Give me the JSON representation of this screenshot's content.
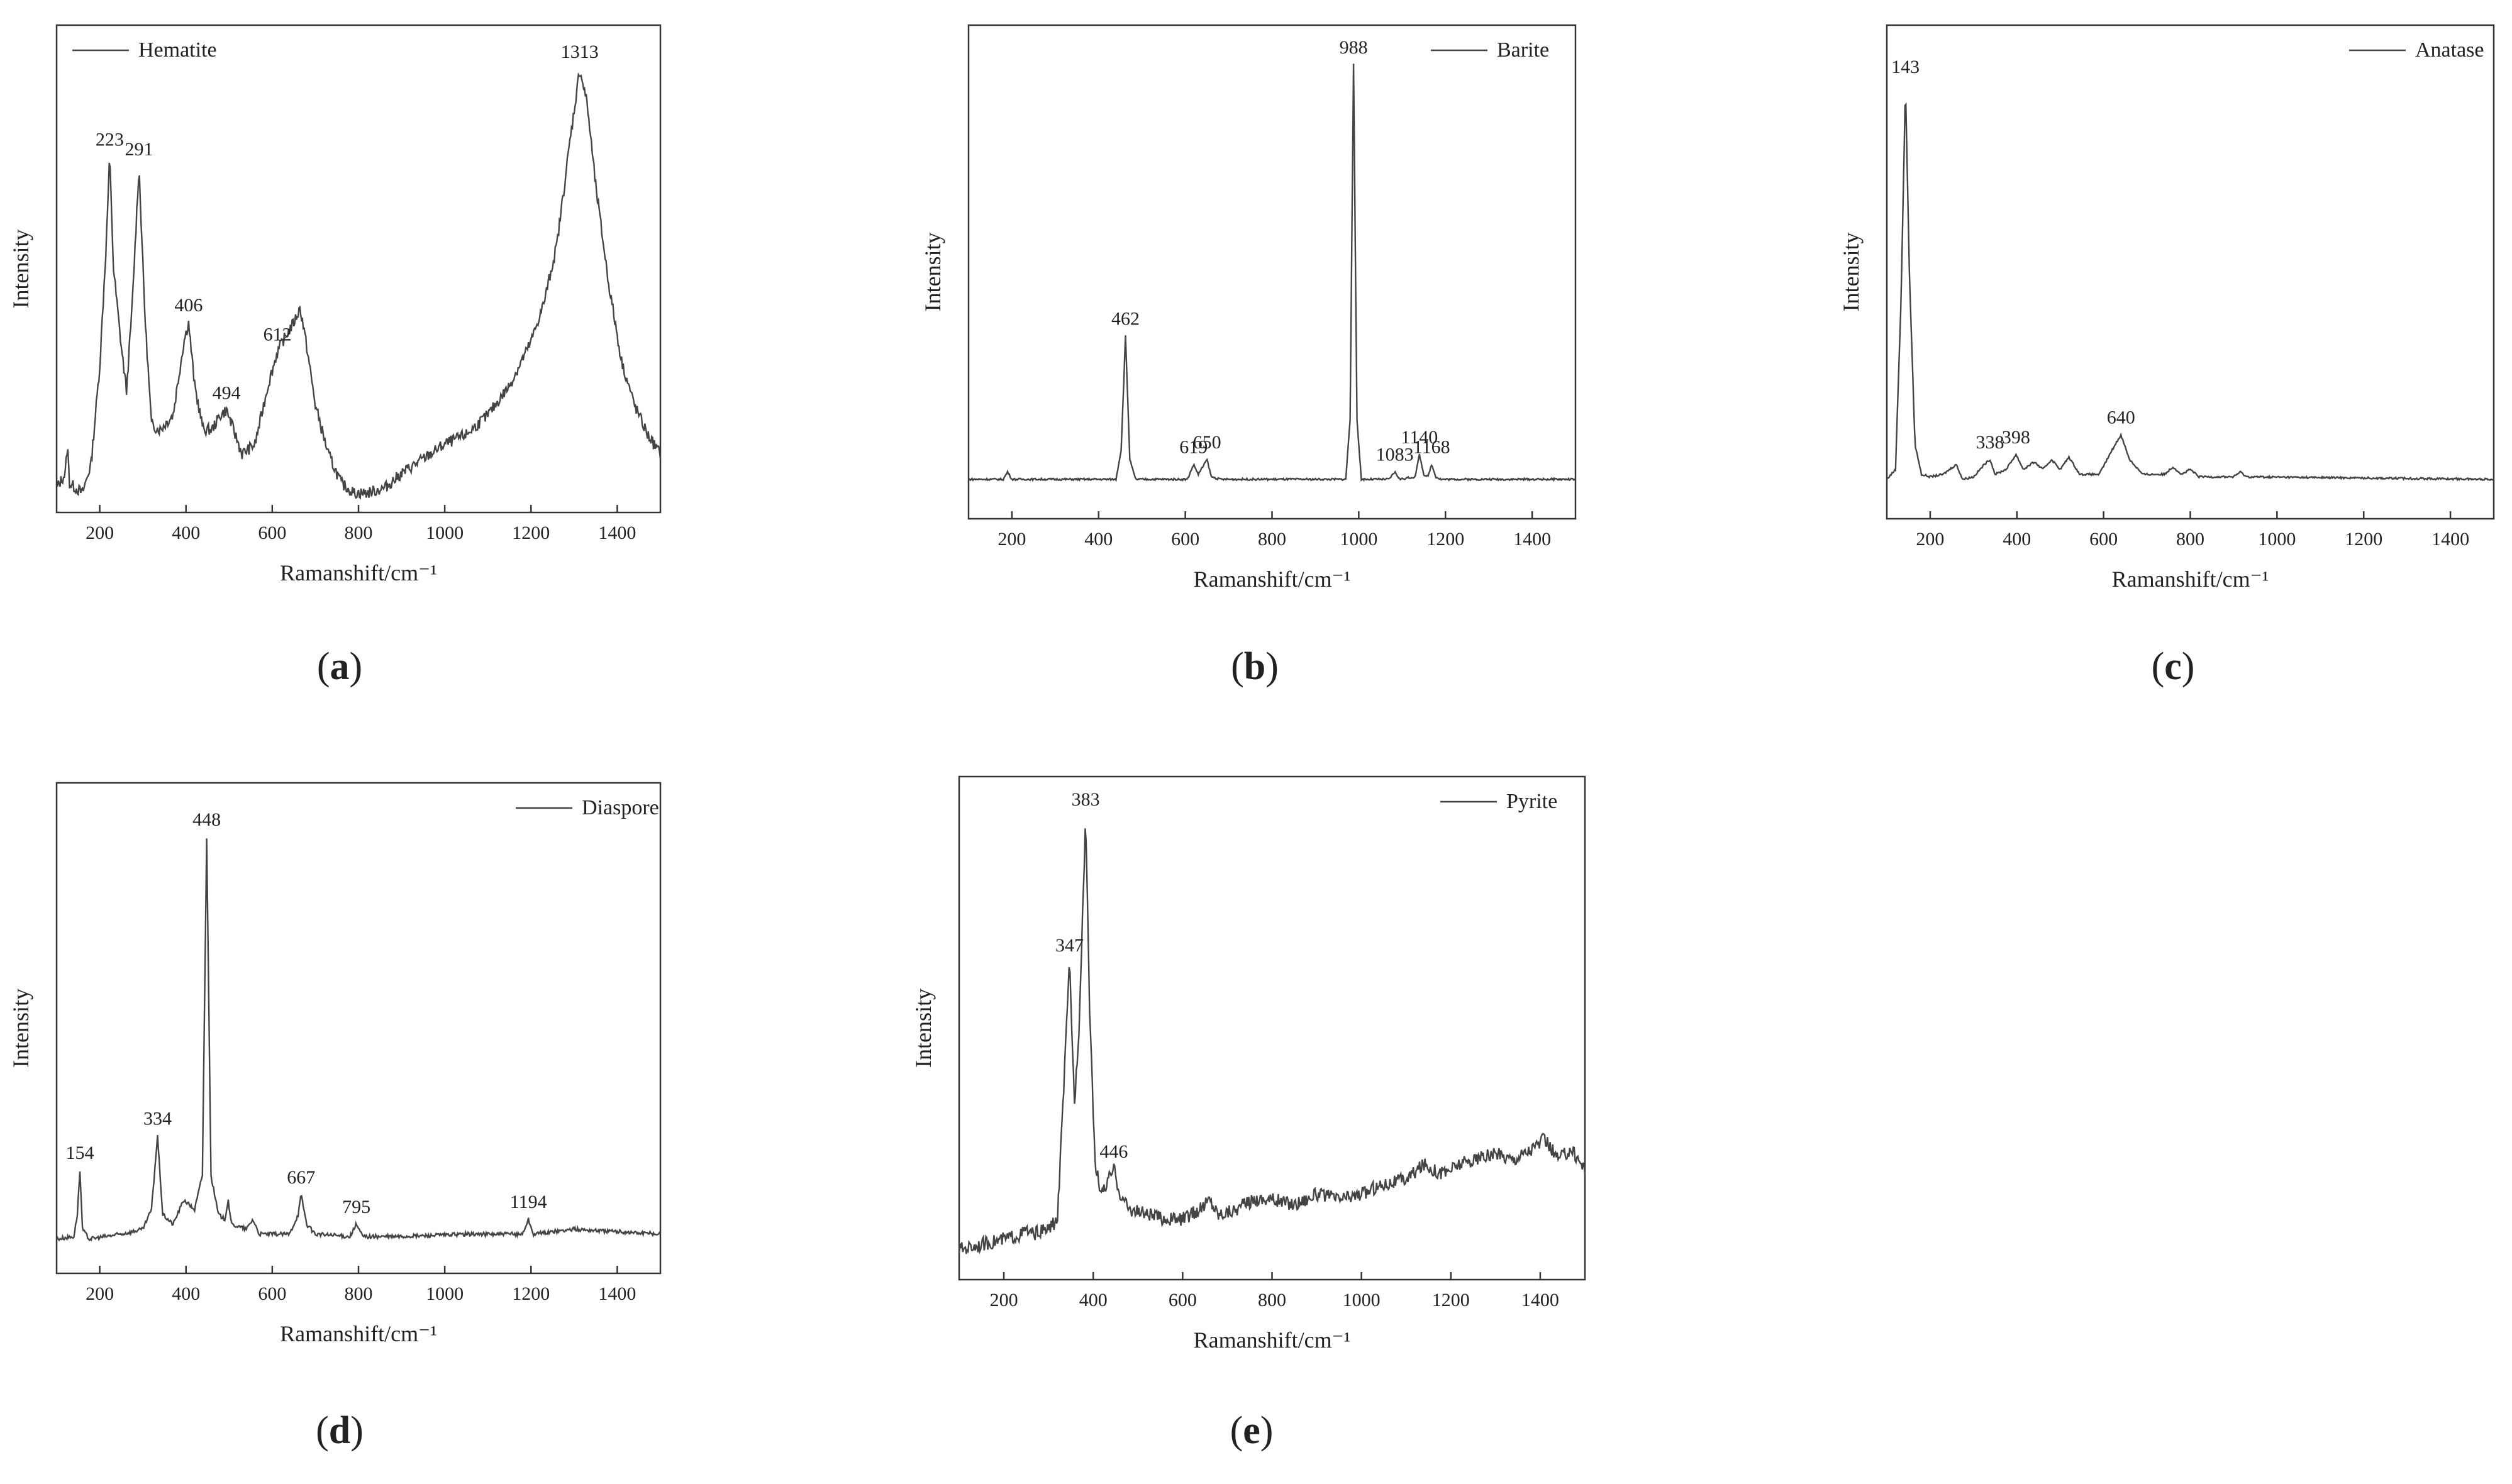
{
  "chart_data": [
    {
      "type": "line",
      "panel_label": "a",
      "xlabel": "Ramanshift/cm⁻¹",
      "ylabel": "Intensity",
      "xlim": [
        100,
        1500
      ],
      "x_ticks": [
        200,
        400,
        600,
        800,
        1000,
        1200,
        1400
      ],
      "legend": "top-left",
      "legend_label": "Hematite",
      "y_ticks_shown": false,
      "grid": false,
      "baseline": 0.05,
      "points": [
        [
          100,
          0.05
        ],
        [
          120,
          0.08
        ],
        [
          125,
          0.14
        ],
        [
          130,
          0.06
        ],
        [
          160,
          0.04
        ],
        [
          180,
          0.1
        ],
        [
          200,
          0.3
        ],
        [
          215,
          0.55
        ],
        [
          223,
          0.73
        ],
        [
          232,
          0.5
        ],
        [
          250,
          0.34
        ],
        [
          262,
          0.25
        ],
        [
          275,
          0.42
        ],
        [
          291,
          0.71
        ],
        [
          305,
          0.4
        ],
        [
          320,
          0.18
        ],
        [
          340,
          0.17
        ],
        [
          370,
          0.2
        ],
        [
          395,
          0.35
        ],
        [
          406,
          0.39
        ],
        [
          420,
          0.26
        ],
        [
          440,
          0.17
        ],
        [
          460,
          0.17
        ],
        [
          480,
          0.2
        ],
        [
          494,
          0.21
        ],
        [
          510,
          0.17
        ],
        [
          530,
          0.12
        ],
        [
          560,
          0.14
        ],
        [
          590,
          0.26
        ],
        [
          612,
          0.33
        ],
        [
          630,
          0.36
        ],
        [
          650,
          0.39
        ],
        [
          665,
          0.42
        ],
        [
          680,
          0.34
        ],
        [
          700,
          0.22
        ],
        [
          730,
          0.12
        ],
        [
          760,
          0.06
        ],
        [
          790,
          0.04
        ],
        [
          820,
          0.04
        ],
        [
          860,
          0.05
        ],
        [
          900,
          0.08
        ],
        [
          950,
          0.11
        ],
        [
          1000,
          0.14
        ],
        [
          1050,
          0.16
        ],
        [
          1100,
          0.2
        ],
        [
          1150,
          0.26
        ],
        [
          1200,
          0.35
        ],
        [
          1230,
          0.43
        ],
        [
          1260,
          0.55
        ],
        [
          1290,
          0.76
        ],
        [
          1313,
          0.91
        ],
        [
          1330,
          0.84
        ],
        [
          1350,
          0.67
        ],
        [
          1380,
          0.47
        ],
        [
          1410,
          0.31
        ],
        [
          1440,
          0.22
        ],
        [
          1470,
          0.16
        ],
        [
          1500,
          0.12
        ]
      ],
      "peaks": [
        {
          "x": 223,
          "label": "223"
        },
        {
          "x": 291,
          "label": "291"
        },
        {
          "x": 406,
          "label": "406"
        },
        {
          "x": 494,
          "label": "494"
        },
        {
          "x": 612,
          "label": "612"
        },
        {
          "x": 1313,
          "label": "1313"
        }
      ]
    },
    {
      "type": "line",
      "panel_label": "b",
      "xlabel": "Ramanshift/cm⁻¹",
      "ylabel": "Intensity",
      "xlim": [
        100,
        1500
      ],
      "x_ticks": [
        200,
        400,
        600,
        800,
        1000,
        1200,
        1400
      ],
      "legend": "top-right",
      "legend_label": "Barite",
      "y_ticks_shown": false,
      "grid": false,
      "baseline": 0.08,
      "points": [
        [
          100,
          0.08
        ],
        [
          180,
          0.08
        ],
        [
          190,
          0.095
        ],
        [
          200,
          0.08
        ],
        [
          440,
          0.08
        ],
        [
          452,
          0.14
        ],
        [
          462,
          0.37
        ],
        [
          472,
          0.12
        ],
        [
          485,
          0.08
        ],
        [
          605,
          0.08
        ],
        [
          619,
          0.11
        ],
        [
          630,
          0.09
        ],
        [
          650,
          0.12
        ],
        [
          660,
          0.085
        ],
        [
          680,
          0.08
        ],
        [
          970,
          0.08
        ],
        [
          980,
          0.2
        ],
        [
          988,
          0.92
        ],
        [
          996,
          0.2
        ],
        [
          1006,
          0.08
        ],
        [
          1070,
          0.08
        ],
        [
          1083,
          0.095
        ],
        [
          1095,
          0.08
        ],
        [
          1130,
          0.085
        ],
        [
          1140,
          0.13
        ],
        [
          1150,
          0.09
        ],
        [
          1160,
          0.085
        ],
        [
          1168,
          0.11
        ],
        [
          1178,
          0.085
        ],
        [
          1190,
          0.08
        ],
        [
          1500,
          0.08
        ]
      ],
      "peaks": [
        {
          "x": 462,
          "label": "462"
        },
        {
          "x": 619,
          "label": "619"
        },
        {
          "x": 650,
          "label": "650"
        },
        {
          "x": 988,
          "label": "988"
        },
        {
          "x": 1083,
          "label": "1083"
        },
        {
          "x": 1140,
          "label": "1140"
        },
        {
          "x": 1168,
          "label": "1168"
        }
      ]
    },
    {
      "type": "line",
      "panel_label": "c",
      "xlabel": "Ramanshift/cm⁻¹",
      "ylabel": "Intensity",
      "xlim": [
        100,
        1500
      ],
      "x_ticks": [
        200,
        400,
        600,
        800,
        1000,
        1200,
        1400
      ],
      "legend": "top-right",
      "legend_label": "Anatase",
      "y_ticks_shown": false,
      "grid": false,
      "baseline": 0.08,
      "points": [
        [
          100,
          0.08
        ],
        [
          120,
          0.1
        ],
        [
          133,
          0.45
        ],
        [
          143,
          0.88
        ],
        [
          152,
          0.5
        ],
        [
          165,
          0.15
        ],
        [
          180,
          0.09
        ],
        [
          200,
          0.085
        ],
        [
          230,
          0.09
        ],
        [
          260,
          0.11
        ],
        [
          275,
          0.08
        ],
        [
          300,
          0.085
        ],
        [
          325,
          0.11
        ],
        [
          338,
          0.12
        ],
        [
          350,
          0.09
        ],
        [
          375,
          0.1
        ],
        [
          398,
          0.13
        ],
        [
          415,
          0.1
        ],
        [
          440,
          0.115
        ],
        [
          460,
          0.1
        ],
        [
          480,
          0.12
        ],
        [
          500,
          0.1
        ],
        [
          520,
          0.125
        ],
        [
          545,
          0.09
        ],
        [
          590,
          0.09
        ],
        [
          620,
          0.14
        ],
        [
          640,
          0.17
        ],
        [
          660,
          0.12
        ],
        [
          690,
          0.09
        ],
        [
          740,
          0.09
        ],
        [
          760,
          0.105
        ],
        [
          780,
          0.09
        ],
        [
          800,
          0.1
        ],
        [
          820,
          0.085
        ],
        [
          900,
          0.085
        ],
        [
          915,
          0.095
        ],
        [
          930,
          0.085
        ],
        [
          1500,
          0.08
        ]
      ],
      "peaks": [
        {
          "x": 143,
          "label": "143"
        },
        {
          "x": 338,
          "label": "338"
        },
        {
          "x": 398,
          "label": "398"
        },
        {
          "x": 640,
          "label": "640"
        }
      ]
    },
    {
      "type": "line",
      "panel_label": "d",
      "xlabel": "Ramanshift/cm⁻¹",
      "ylabel": "Intensity",
      "xlim": [
        100,
        1500
      ],
      "x_ticks": [
        200,
        400,
        600,
        800,
        1000,
        1200,
        1400
      ],
      "legend": "top-right",
      "legend_label": "Diaspore",
      "y_ticks_shown": false,
      "grid": false,
      "baseline": 0.07,
      "points": [
        [
          100,
          0.07
        ],
        [
          140,
          0.075
        ],
        [
          148,
          0.12
        ],
        [
          154,
          0.21
        ],
        [
          160,
          0.09
        ],
        [
          175,
          0.07
        ],
        [
          250,
          0.08
        ],
        [
          300,
          0.09
        ],
        [
          320,
          0.13
        ],
        [
          334,
          0.28
        ],
        [
          346,
          0.12
        ],
        [
          370,
          0.1
        ],
        [
          395,
          0.15
        ],
        [
          420,
          0.13
        ],
        [
          438,
          0.2
        ],
        [
          448,
          0.89
        ],
        [
          458,
          0.2
        ],
        [
          475,
          0.12
        ],
        [
          490,
          0.11
        ],
        [
          498,
          0.15
        ],
        [
          505,
          0.1
        ],
        [
          540,
          0.09
        ],
        [
          555,
          0.11
        ],
        [
          570,
          0.08
        ],
        [
          640,
          0.08
        ],
        [
          660,
          0.12
        ],
        [
          667,
          0.16
        ],
        [
          680,
          0.1
        ],
        [
          700,
          0.08
        ],
        [
          780,
          0.075
        ],
        [
          795,
          0.1
        ],
        [
          810,
          0.075
        ],
        [
          900,
          0.075
        ],
        [
          1050,
          0.08
        ],
        [
          1180,
          0.08
        ],
        [
          1194,
          0.11
        ],
        [
          1205,
          0.08
        ],
        [
          1300,
          0.09
        ],
        [
          1400,
          0.085
        ],
        [
          1500,
          0.08
        ]
      ],
      "peaks": [
        {
          "x": 154,
          "label": "154"
        },
        {
          "x": 334,
          "label": "334"
        },
        {
          "x": 448,
          "label": "448"
        },
        {
          "x": 667,
          "label": "667"
        },
        {
          "x": 795,
          "label": "795"
        },
        {
          "x": 1194,
          "label": "1194"
        }
      ]
    },
    {
      "type": "line",
      "panel_label": "e",
      "xlabel": "Ramanshift/cm⁻¹",
      "ylabel": "Intensity",
      "xlim": [
        100,
        1500
      ],
      "x_ticks": [
        200,
        400,
        600,
        800,
        1000,
        1200,
        1400
      ],
      "legend": "top-right",
      "legend_label": "Pyrite",
      "y_ticks_shown": false,
      "grid": false,
      "baseline": 0.06,
      "points": [
        [
          100,
          0.06
        ],
        [
          150,
          0.07
        ],
        [
          200,
          0.08
        ],
        [
          240,
          0.09
        ],
        [
          250,
          0.1
        ],
        [
          260,
          0.09
        ],
        [
          300,
          0.1
        ],
        [
          320,
          0.12
        ],
        [
          335,
          0.4
        ],
        [
          347,
          0.63
        ],
        [
          358,
          0.35
        ],
        [
          368,
          0.5
        ],
        [
          383,
          0.92
        ],
        [
          393,
          0.5
        ],
        [
          405,
          0.22
        ],
        [
          420,
          0.17
        ],
        [
          446,
          0.22
        ],
        [
          460,
          0.17
        ],
        [
          480,
          0.14
        ],
        [
          520,
          0.13
        ],
        [
          560,
          0.12
        ],
        [
          600,
          0.12
        ],
        [
          640,
          0.14
        ],
        [
          660,
          0.16
        ],
        [
          680,
          0.13
        ],
        [
          720,
          0.14
        ],
        [
          760,
          0.16
        ],
        [
          800,
          0.16
        ],
        [
          850,
          0.15
        ],
        [
          900,
          0.17
        ],
        [
          950,
          0.16
        ],
        [
          1000,
          0.17
        ],
        [
          1050,
          0.19
        ],
        [
          1100,
          0.2
        ],
        [
          1140,
          0.23
        ],
        [
          1180,
          0.21
        ],
        [
          1220,
          0.23
        ],
        [
          1260,
          0.24
        ],
        [
          1300,
          0.25
        ],
        [
          1340,
          0.24
        ],
        [
          1380,
          0.26
        ],
        [
          1410,
          0.28
        ],
        [
          1440,
          0.24
        ],
        [
          1470,
          0.26
        ],
        [
          1500,
          0.22
        ]
      ],
      "peaks": [
        {
          "x": 347,
          "label": "347"
        },
        {
          "x": 383,
          "label": "383"
        },
        {
          "x": 446,
          "label": "446"
        }
      ]
    }
  ]
}
